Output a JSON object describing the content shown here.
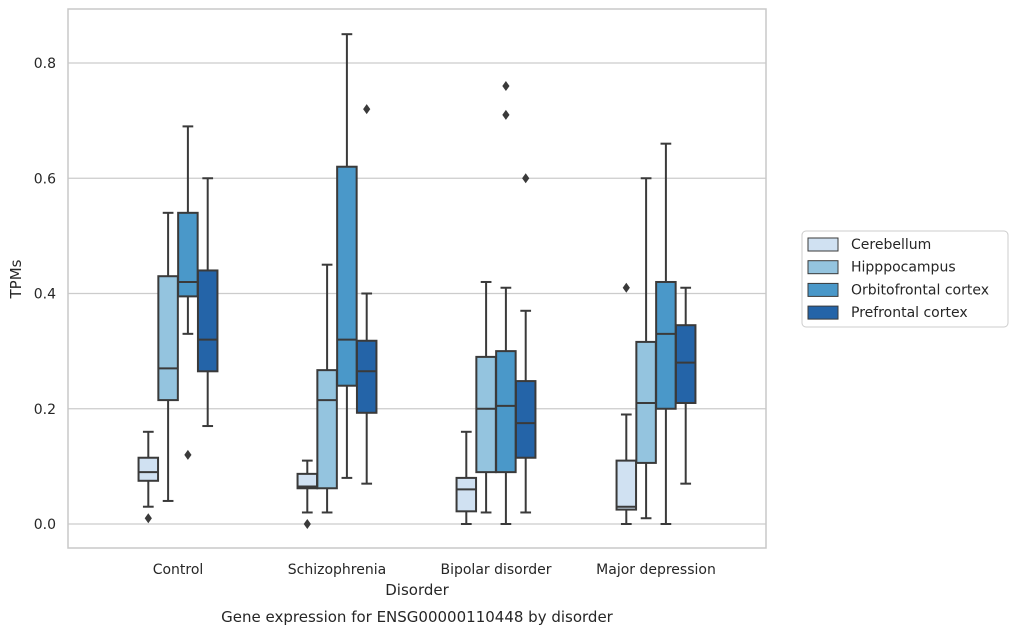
{
  "chart_data": {
    "type": "box",
    "caption": "Gene expression for ENSG00000110448 by disorder",
    "xlabel": "Disorder",
    "ylabel": "TPMs",
    "ylim": [
      -0.04,
      0.895
    ],
    "yticks": [
      0.0,
      0.2,
      0.4,
      0.6,
      0.8
    ],
    "ytick_labels": [
      "0.0",
      "0.2",
      "0.4",
      "0.6",
      "0.8"
    ],
    "categories": [
      "Control",
      "Schizophrenia",
      "Bipolar disorder",
      "Major depression"
    ],
    "grid": "horizontal",
    "legend_position": "right",
    "series": [
      {
        "name": "Cerebellum",
        "color": "#d0e1f2",
        "boxes": [
          {
            "whislo": 0.03,
            "q1": 0.075,
            "med": 0.09,
            "q3": 0.115,
            "whishi": 0.16,
            "fliers": [
              0.01
            ]
          },
          {
            "whislo": 0.02,
            "q1": 0.062,
            "med": 0.065,
            "q3": 0.087,
            "whishi": 0.11,
            "fliers": [
              0.0
            ]
          },
          {
            "whislo": 0.0,
            "q1": 0.022,
            "med": 0.06,
            "q3": 0.08,
            "whishi": 0.16,
            "fliers": []
          },
          {
            "whislo": 0.0,
            "q1": 0.025,
            "med": 0.03,
            "q3": 0.11,
            "whishi": 0.19,
            "fliers": [
              0.41
            ]
          }
        ]
      },
      {
        "name": "Hipppocampus",
        "color": "#94c4df",
        "boxes": [
          {
            "whislo": 0.04,
            "q1": 0.215,
            "med": 0.27,
            "q3": 0.43,
            "whishi": 0.54,
            "fliers": []
          },
          {
            "whislo": 0.02,
            "q1": 0.062,
            "med": 0.215,
            "q3": 0.267,
            "whishi": 0.45,
            "fliers": []
          },
          {
            "whislo": 0.02,
            "q1": 0.09,
            "med": 0.2,
            "q3": 0.29,
            "whishi": 0.42,
            "fliers": []
          },
          {
            "whislo": 0.01,
            "q1": 0.106,
            "med": 0.21,
            "q3": 0.316,
            "whishi": 0.6,
            "fliers": []
          }
        ]
      },
      {
        "name": "Orbitofrontal cortex",
        "color": "#4a98c9",
        "boxes": [
          {
            "whislo": 0.33,
            "q1": 0.395,
            "med": 0.42,
            "q3": 0.54,
            "whishi": 0.69,
            "fliers": [
              0.12
            ]
          },
          {
            "whislo": 0.08,
            "q1": 0.24,
            "med": 0.32,
            "q3": 0.62,
            "whishi": 0.85,
            "fliers": []
          },
          {
            "whislo": 0.0,
            "q1": 0.09,
            "med": 0.205,
            "q3": 0.3,
            "whishi": 0.41,
            "fliers": [
              0.76,
              0.71
            ]
          },
          {
            "whislo": 0.0,
            "q1": 0.2,
            "med": 0.33,
            "q3": 0.42,
            "whishi": 0.66,
            "fliers": []
          }
        ]
      },
      {
        "name": "Prefrontal cortex",
        "color": "#2464a8",
        "boxes": [
          {
            "whislo": 0.17,
            "q1": 0.265,
            "med": 0.32,
            "q3": 0.44,
            "whishi": 0.6,
            "fliers": []
          },
          {
            "whislo": 0.07,
            "q1": 0.193,
            "med": 0.265,
            "q3": 0.318,
            "whishi": 0.4,
            "fliers": [
              0.72
            ]
          },
          {
            "whislo": 0.02,
            "q1": 0.115,
            "med": 0.175,
            "q3": 0.248,
            "whishi": 0.37,
            "fliers": [
              0.6
            ]
          },
          {
            "whislo": 0.07,
            "q1": 0.21,
            "med": 0.28,
            "q3": 0.345,
            "whishi": 0.41,
            "fliers": []
          }
        ]
      }
    ],
    "colors": {
      "line": "#3a3a3a",
      "grid": "#cccccc",
      "frame": "#c8c8c8"
    }
  }
}
